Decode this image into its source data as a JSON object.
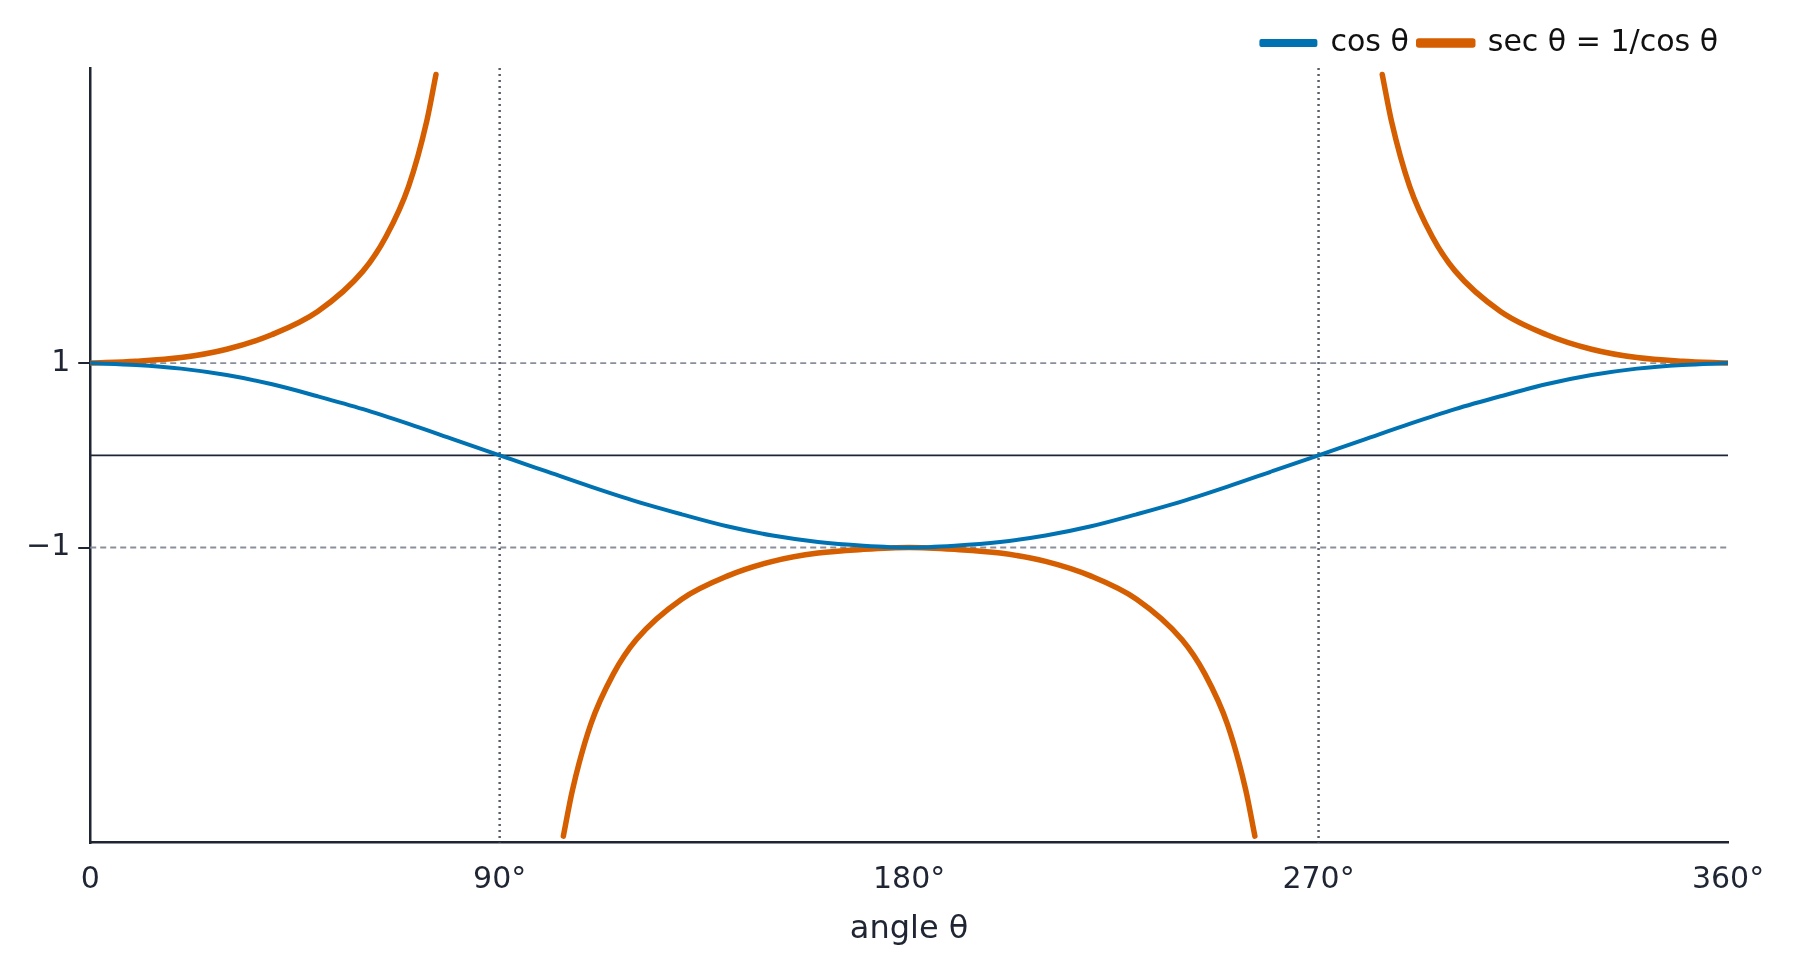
{
  "chart_data": {
    "type": "line",
    "xlabel": "angle θ",
    "xlim": [
      0,
      360
    ],
    "xticks": [
      0,
      {
        "value": 90,
        "label": "90°"
      },
      {
        "value": 180,
        "label": "180°"
      },
      {
        "value": 270,
        "label": "270°"
      },
      {
        "value": 360,
        "label": "360°"
      }
    ],
    "ylim": [
      -4.2,
      4.2
    ],
    "yticks": [
      {
        "value": -1,
        "label": "−1"
      },
      1
    ],
    "grid": false,
    "legend": "top right",
    "marker": "none",
    "series": [
      {
        "name": "cos θ",
        "color": "#0072b2",
        "x": [
          0,
          10,
          20,
          30,
          40,
          50,
          60,
          70,
          80,
          90,
          100,
          110,
          120,
          130,
          140,
          150,
          160,
          170,
          180,
          190,
          200,
          210,
          220,
          230,
          240,
          250,
          260,
          270,
          280,
          290,
          300,
          310,
          320,
          330,
          340,
          350,
          360
        ],
        "values": [
          1,
          0.98,
          0.94,
          0.87,
          0.77,
          0.64,
          0.5,
          0.34,
          0.17,
          0,
          -0.17,
          -0.34,
          -0.5,
          -0.64,
          -0.77,
          -0.87,
          -0.94,
          -0.98,
          -1,
          -0.98,
          -0.94,
          -0.87,
          -0.77,
          -0.64,
          -0.5,
          -0.34,
          -0.17,
          0,
          0.17,
          0.34,
          0.5,
          0.64,
          0.77,
          0.87,
          0.94,
          0.98,
          1
        ]
      },
      {
        "name": "sec θ = 1/cos θ",
        "color": "#d55e00",
        "x": [
          0,
          10,
          20,
          30,
          40,
          50,
          60,
          65,
          70,
          74,
          76,
          90,
          104,
          106,
          110,
          115,
          120,
          130,
          140,
          150,
          160,
          170,
          180,
          190,
          200,
          210,
          220,
          230,
          240,
          245,
          250,
          254,
          256,
          270,
          284,
          286,
          290,
          295,
          300,
          310,
          320,
          330,
          340,
          350,
          360
        ],
        "values": [
          1,
          1.02,
          1.06,
          1.15,
          1.31,
          1.56,
          2,
          2.37,
          2.92,
          3.63,
          4.13,
          null,
          -4.13,
          -3.63,
          -2.92,
          -2.37,
          -2,
          -1.56,
          -1.31,
          -1.15,
          -1.06,
          -1.02,
          -1,
          -1.02,
          -1.06,
          -1.15,
          -1.31,
          -1.56,
          -2,
          -2.37,
          -2.92,
          -3.63,
          -4.13,
          null,
          4.13,
          3.63,
          2.92,
          2.37,
          2,
          1.56,
          1.31,
          1.15,
          1.06,
          1.02,
          1
        ]
      }
    ],
    "ref_lines": [
      {
        "axis": "y",
        "value": 1,
        "color": "#8a8f9a",
        "line_style": "dashed"
      },
      {
        "axis": "y",
        "value": -1,
        "color": "#8a8f9a",
        "line_style": "dashed"
      },
      {
        "axis": "y",
        "value": 0,
        "color": "#1f2533",
        "line_style": "solid"
      },
      {
        "axis": "x",
        "value": 90,
        "color": "#5a5f6a",
        "line_style": "dotted"
      },
      {
        "axis": "x",
        "value": 270,
        "color": "#5a5f6a",
        "line_style": "dotted"
      }
    ]
  }
}
